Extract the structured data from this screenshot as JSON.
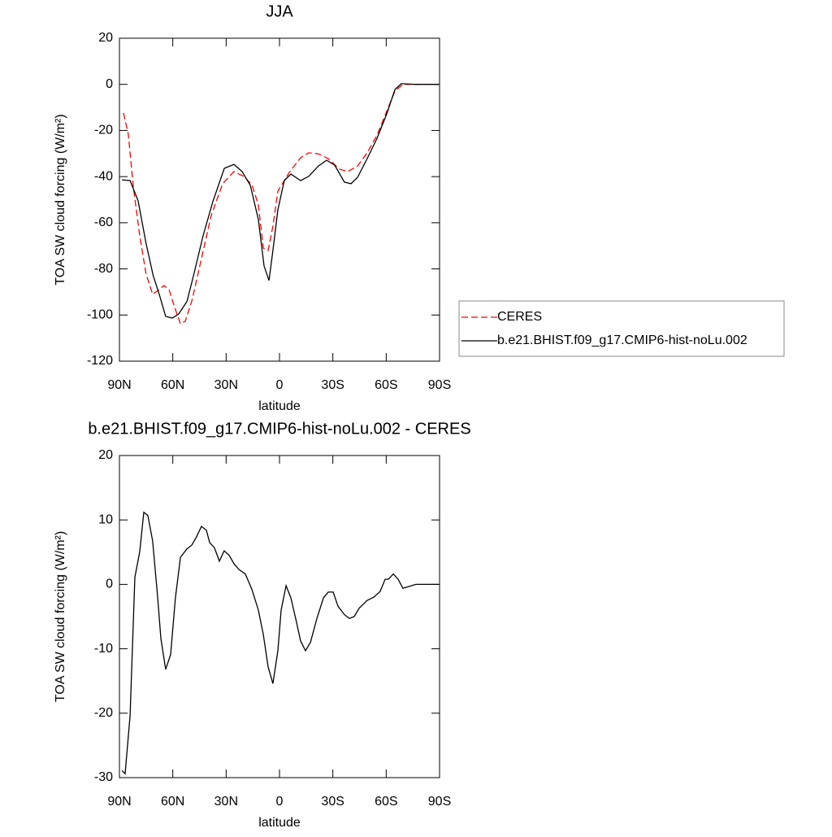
{
  "chart_data": [
    {
      "type": "line",
      "title": "JJA",
      "xlabel": "latitude",
      "ylabel": "TOA SW cloud forcing (W/m²)",
      "xlim": [
        90,
        -90
      ],
      "xticks": [
        {
          "value": 90,
          "label": "90N"
        },
        {
          "value": 60,
          "label": "60N"
        },
        {
          "value": 30,
          "label": "30N"
        },
        0,
        {
          "value": -30,
          "label": "30S"
        },
        {
          "value": -60,
          "label": "60S"
        },
        {
          "value": -90,
          "label": "90S"
        }
      ],
      "ylim": [
        -120,
        20
      ],
      "yticks": [
        -120,
        -100,
        -80,
        -60,
        -40,
        -20,
        0,
        20
      ],
      "legend": "right",
      "series": [
        {
          "name": "CERES",
          "color": "#ff0000",
          "dash": "dashed",
          "x": [
            87.7,
            85,
            82.2,
            78.6,
            75,
            71.3,
            67.6,
            64.9,
            62.1,
            59.4,
            55.7,
            53,
            49.3,
            43.9,
            38.4,
            32,
            25.6,
            20.1,
            15.5,
            11.9,
            9.1,
            6.4,
            3.7,
            0.9,
            -5.5,
            -11.9,
            -16.4,
            -21.9,
            -27.4,
            -33.8,
            -38.4,
            -43.9,
            -49.3,
            -54.8,
            -60.3,
            -64.9,
            -69.4,
            -89.5
          ],
          "values": [
            -12.4,
            -21.6,
            -44.5,
            -65.7,
            -82.3,
            -91,
            -89,
            -87.2,
            -89,
            -95.7,
            -103.8,
            -102.7,
            -93.9,
            -75.6,
            -56.9,
            -43.1,
            -37.8,
            -39.9,
            -43.5,
            -52.3,
            -71,
            -72,
            -61.5,
            -46.3,
            -38.2,
            -31.8,
            -29.7,
            -30.1,
            -32.2,
            -36.8,
            -37.8,
            -35.4,
            -29.7,
            -22,
            -11.7,
            -2.9,
            0,
            0
          ]
        },
        {
          "name": "b.e21.BHIST.f09_g17.CMIP6-hist-noLu.002",
          "color": "#000000",
          "dash": "solid",
          "x": [
            88.6,
            84,
            79.5,
            75,
            71,
            67.6,
            64,
            60.3,
            56.6,
            52,
            48.4,
            43,
            37.5,
            31,
            25.6,
            21,
            16.4,
            11.9,
            8.7,
            5.9,
            3.7,
            0.9,
            -2.7,
            -6.4,
            -11.9,
            -16.4,
            -21.9,
            -26.5,
            -31,
            -36.5,
            -40.2,
            -43.9,
            -49.3,
            -54.8,
            -60.3,
            -64.9,
            -68.5,
            -75.8,
            -89.5
          ],
          "values": [
            -41.4,
            -41.7,
            -50.5,
            -69,
            -83,
            -91,
            -100.6,
            -101.3,
            -99.5,
            -94,
            -83,
            -65.7,
            -50.9,
            -36.4,
            -34.7,
            -37.8,
            -43.8,
            -58.6,
            -78.7,
            -85,
            -72,
            -54.4,
            -41.7,
            -38.9,
            -41.7,
            -39.9,
            -35.4,
            -32.9,
            -35,
            -42.4,
            -43.1,
            -40.3,
            -32.2,
            -23.4,
            -12.8,
            -2.2,
            0.3,
            0,
            0
          ]
        }
      ]
    },
    {
      "type": "line",
      "title": "b.e21.BHIST.f09_g17.CMIP6-hist-noLu.002 - CERES",
      "xlabel": "latitude",
      "ylabel": "TOA SW cloud forcing (W/m²)",
      "xlim": [
        90,
        -90
      ],
      "xticks": [
        {
          "value": 90,
          "label": "90N"
        },
        {
          "value": 60,
          "label": "60N"
        },
        {
          "value": 30,
          "label": "30N"
        },
        0,
        {
          "value": -30,
          "label": "30S"
        },
        {
          "value": -60,
          "label": "60S"
        },
        {
          "value": -90,
          "label": "90S"
        }
      ],
      "ylim": [
        -30,
        20
      ],
      "yticks": [
        -30,
        -20,
        -10,
        0,
        10,
        20
      ],
      "series": [
        {
          "color": "#000000",
          "dash": "solid",
          "x": [
            88.6,
            86.8,
            84,
            81.3,
            78.6,
            76.3,
            74,
            71.3,
            68.5,
            66.7,
            64,
            61.2,
            58.5,
            55.7,
            52.1,
            49.3,
            46.6,
            43.9,
            41.1,
            39.3,
            36.6,
            33.8,
            31.1,
            28.3,
            25.6,
            22.8,
            19.2,
            15.5,
            11.9,
            9.1,
            6.4,
            3.7,
            0.9,
            -0.9,
            -3.7,
            -6.4,
            -9.1,
            -11.9,
            -14.6,
            -17.4,
            -21,
            -24.7,
            -27.4,
            -30.2,
            -32.9,
            -36.5,
            -39.3,
            -42,
            -44.8,
            -49.3,
            -53,
            -56.6,
            -59.4,
            -61.2,
            -64,
            -66.7,
            -69.4,
            -76.7,
            -89.5
          ],
          "values": [
            -28.9,
            -29.4,
            -20.4,
            1.1,
            5.1,
            11.2,
            10.7,
            6.7,
            -2.1,
            -8.4,
            -13.2,
            -10.9,
            -2.1,
            4.2,
            5.5,
            6.1,
            7.4,
            9,
            8.4,
            6.5,
            5.7,
            3.6,
            5.2,
            4.5,
            3.2,
            2.3,
            1.6,
            -0.8,
            -4,
            -7.8,
            -12.8,
            -15.4,
            -10.3,
            -4,
            -0.2,
            -2.1,
            -5.3,
            -8.8,
            -10.3,
            -9,
            -5.3,
            -2.1,
            -1.2,
            -1.2,
            -3.4,
            -4.7,
            -5.3,
            -5,
            -3.7,
            -2.5,
            -2,
            -1.1,
            0.8,
            0.8,
            1.6,
            0.8,
            -0.6,
            0,
            0
          ]
        }
      ]
    }
  ]
}
